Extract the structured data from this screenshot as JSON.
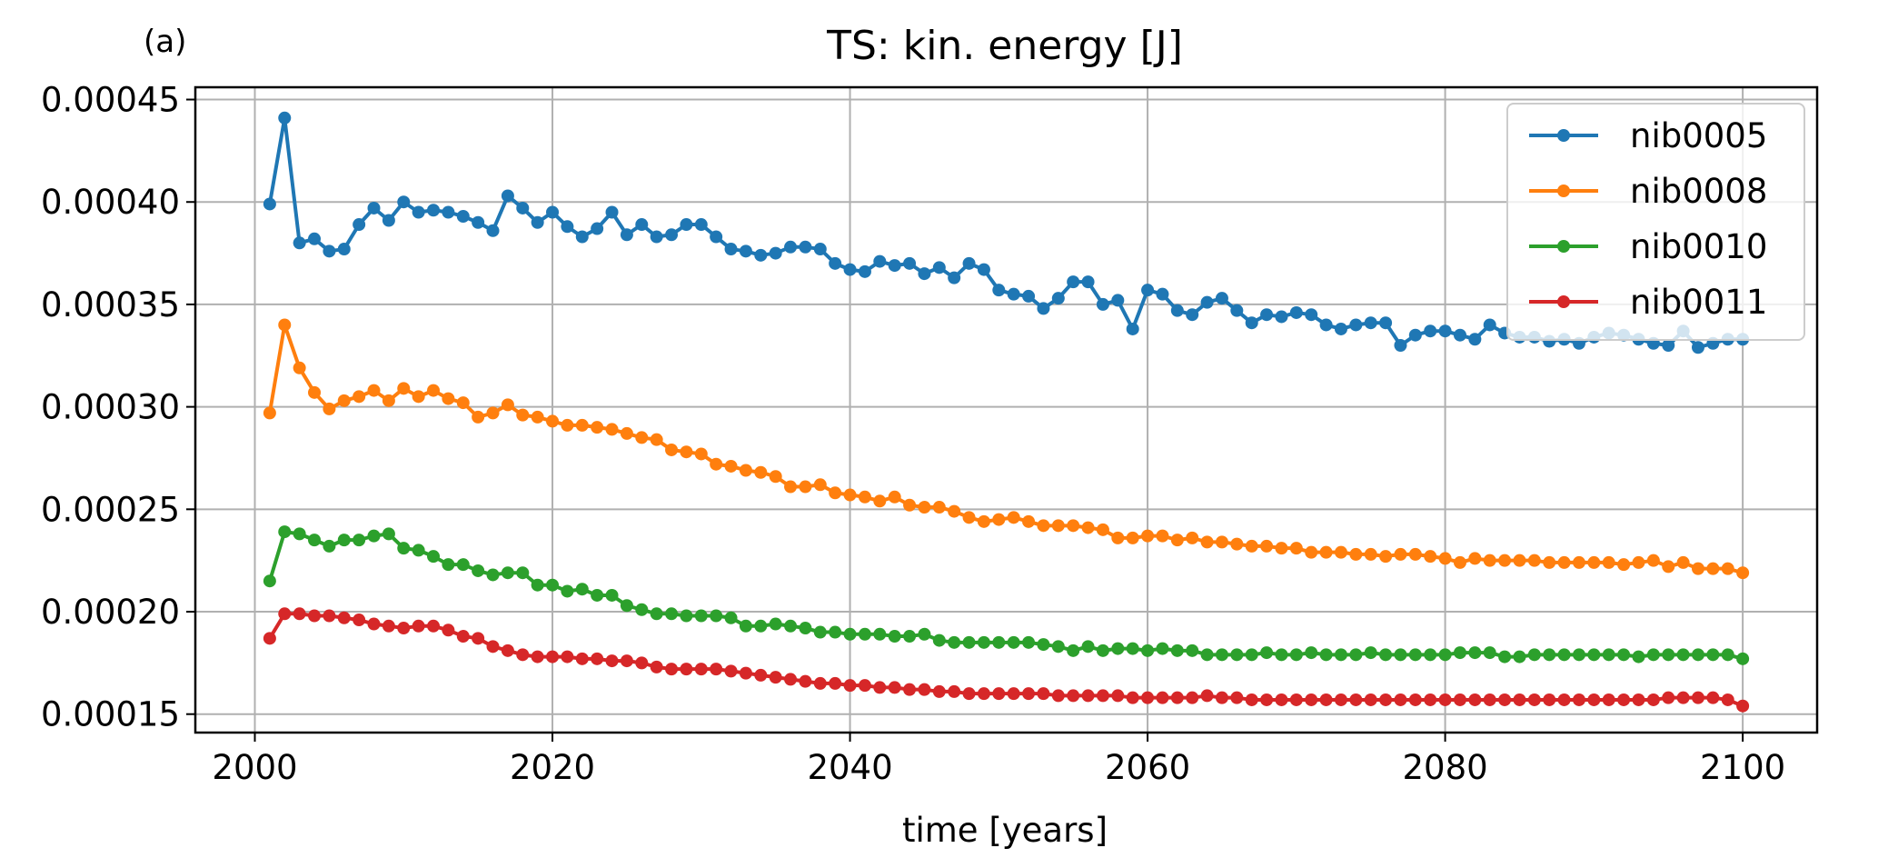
{
  "panel_label": "(a)",
  "chart_data": {
    "type": "line",
    "title": "TS: kin. energy [J]",
    "xlabel": "time [years]",
    "ylabel": "",
    "xlim": [
      1996,
      2105
    ],
    "ylim": [
      0.000141,
      0.000456
    ],
    "xticks": [
      2000,
      2020,
      2040,
      2060,
      2080,
      2100
    ],
    "xtick_labels": [
      "2000",
      "2020",
      "2040",
      "2060",
      "2080",
      "2100"
    ],
    "yticks": [
      0.00015,
      0.0002,
      0.00025,
      0.0003,
      0.00035,
      0.0004,
      0.00045
    ],
    "ytick_labels": [
      "0.00015",
      "0.00020",
      "0.00025",
      "0.00030",
      "0.00035",
      "0.00040",
      "0.00045"
    ],
    "grid": true,
    "legend_position": "top-right",
    "x_start": 2001,
    "x_step": 1,
    "series": [
      {
        "name": "nib0005",
        "color": "#1f77b4",
        "values": [
          0.000399,
          0.000441,
          0.00038,
          0.000382,
          0.000376,
          0.000377,
          0.000389,
          0.000397,
          0.000391,
          0.0004,
          0.000395,
          0.000396,
          0.000395,
          0.000393,
          0.00039,
          0.000386,
          0.000403,
          0.000397,
          0.00039,
          0.000395,
          0.000388,
          0.000383,
          0.000387,
          0.000395,
          0.000384,
          0.000389,
          0.000383,
          0.000384,
          0.000389,
          0.000389,
          0.000383,
          0.000377,
          0.000376,
          0.000374,
          0.000375,
          0.000378,
          0.000378,
          0.000377,
          0.00037,
          0.000367,
          0.000366,
          0.000371,
          0.000369,
          0.00037,
          0.000365,
          0.000368,
          0.000363,
          0.00037,
          0.000367,
          0.000357,
          0.000355,
          0.000354,
          0.000348,
          0.000353,
          0.000361,
          0.000361,
          0.00035,
          0.000352,
          0.000338,
          0.000357,
          0.000355,
          0.000347,
          0.000345,
          0.000351,
          0.000353,
          0.000347,
          0.000341,
          0.000345,
          0.000344,
          0.000346,
          0.000345,
          0.00034,
          0.000338,
          0.00034,
          0.000341,
          0.000341,
          0.00033,
          0.000335,
          0.000337,
          0.000337,
          0.000335,
          0.000333,
          0.00034,
          0.000336,
          0.000334,
          0.000334,
          0.000332,
          0.000333,
          0.000331,
          0.000334,
          0.000336,
          0.000335,
          0.000333,
          0.000331,
          0.00033,
          0.000337,
          0.000329,
          0.000331,
          0.000333,
          0.000333
        ]
      },
      {
        "name": "nib0008",
        "color": "#ff7f0e",
        "values": [
          0.000297,
          0.00034,
          0.000319,
          0.000307,
          0.000299,
          0.000303,
          0.000305,
          0.000308,
          0.000303,
          0.000309,
          0.000305,
          0.000308,
          0.000304,
          0.000302,
          0.000295,
          0.000297,
          0.000301,
          0.000296,
          0.000295,
          0.000293,
          0.000291,
          0.000291,
          0.00029,
          0.000289,
          0.000287,
          0.000285,
          0.000284,
          0.000279,
          0.000278,
          0.000277,
          0.000272,
          0.000271,
          0.000269,
          0.000268,
          0.000266,
          0.000261,
          0.000261,
          0.000262,
          0.000258,
          0.000257,
          0.000256,
          0.000254,
          0.000256,
          0.000252,
          0.000251,
          0.000251,
          0.000249,
          0.000246,
          0.000244,
          0.000245,
          0.000246,
          0.000244,
          0.000242,
          0.000242,
          0.000242,
          0.000241,
          0.00024,
          0.000236,
          0.000236,
          0.000237,
          0.000237,
          0.000235,
          0.000236,
          0.000234,
          0.000234,
          0.000233,
          0.000232,
          0.000232,
          0.000231,
          0.000231,
          0.000229,
          0.000229,
          0.000229,
          0.000228,
          0.000228,
          0.000227,
          0.000228,
          0.000228,
          0.000227,
          0.000226,
          0.000224,
          0.000226,
          0.000225,
          0.000225,
          0.000225,
          0.000225,
          0.000224,
          0.000224,
          0.000224,
          0.000224,
          0.000224,
          0.000223,
          0.000224,
          0.000225,
          0.000222,
          0.000224,
          0.000221,
          0.000221,
          0.000221,
          0.000219
        ]
      },
      {
        "name": "nib0010",
        "color": "#2ca02c",
        "values": [
          0.000215,
          0.000239,
          0.000238,
          0.000235,
          0.000232,
          0.000235,
          0.000235,
          0.000237,
          0.000238,
          0.000231,
          0.00023,
          0.000227,
          0.000223,
          0.000223,
          0.00022,
          0.000218,
          0.000219,
          0.000219,
          0.000213,
          0.000213,
          0.00021,
          0.000211,
          0.000208,
          0.000208,
          0.000203,
          0.000201,
          0.000199,
          0.000199,
          0.000198,
          0.000198,
          0.000198,
          0.000197,
          0.000193,
          0.000193,
          0.000194,
          0.000193,
          0.000192,
          0.00019,
          0.00019,
          0.000189,
          0.000189,
          0.000189,
          0.000188,
          0.000188,
          0.000189,
          0.000186,
          0.000185,
          0.000185,
          0.000185,
          0.000185,
          0.000185,
          0.000185,
          0.000184,
          0.000183,
          0.000181,
          0.000183,
          0.000181,
          0.000182,
          0.000182,
          0.000181,
          0.000182,
          0.000181,
          0.000181,
          0.000179,
          0.000179,
          0.000179,
          0.000179,
          0.00018,
          0.000179,
          0.000179,
          0.00018,
          0.000179,
          0.000179,
          0.000179,
          0.00018,
          0.000179,
          0.000179,
          0.000179,
          0.000179,
          0.000179,
          0.00018,
          0.00018,
          0.00018,
          0.000178,
          0.000178,
          0.000179,
          0.000179,
          0.000179,
          0.000179,
          0.000179,
          0.000179,
          0.000179,
          0.000178,
          0.000179,
          0.000179,
          0.000179,
          0.000179,
          0.000179,
          0.000179,
          0.000177
        ]
      },
      {
        "name": "nib0011",
        "color": "#d62728",
        "values": [
          0.000187,
          0.000199,
          0.000199,
          0.000198,
          0.000198,
          0.000197,
          0.000196,
          0.000194,
          0.000193,
          0.000192,
          0.000193,
          0.000193,
          0.000191,
          0.000188,
          0.000187,
          0.000183,
          0.000181,
          0.000179,
          0.000178,
          0.000178,
          0.000178,
          0.000177,
          0.000177,
          0.000176,
          0.000176,
          0.000175,
          0.000173,
          0.000172,
          0.000172,
          0.000172,
          0.000172,
          0.000171,
          0.00017,
          0.000169,
          0.000168,
          0.000167,
          0.000166,
          0.000165,
          0.000165,
          0.000164,
          0.000164,
          0.000163,
          0.000163,
          0.000162,
          0.000162,
          0.000161,
          0.000161,
          0.00016,
          0.00016,
          0.00016,
          0.00016,
          0.00016,
          0.00016,
          0.000159,
          0.000159,
          0.000159,
          0.000159,
          0.000159,
          0.000158,
          0.000158,
          0.000158,
          0.000158,
          0.000158,
          0.000159,
          0.000158,
          0.000158,
          0.000157,
          0.000157,
          0.000157,
          0.000157,
          0.000157,
          0.000157,
          0.000157,
          0.000157,
          0.000157,
          0.000157,
          0.000157,
          0.000157,
          0.000157,
          0.000157,
          0.000157,
          0.000157,
          0.000157,
          0.000157,
          0.000157,
          0.000157,
          0.000157,
          0.000157,
          0.000157,
          0.000157,
          0.000157,
          0.000157,
          0.000157,
          0.000157,
          0.000158,
          0.000158,
          0.000158,
          0.000158,
          0.000157,
          0.000154
        ]
      }
    ]
  }
}
